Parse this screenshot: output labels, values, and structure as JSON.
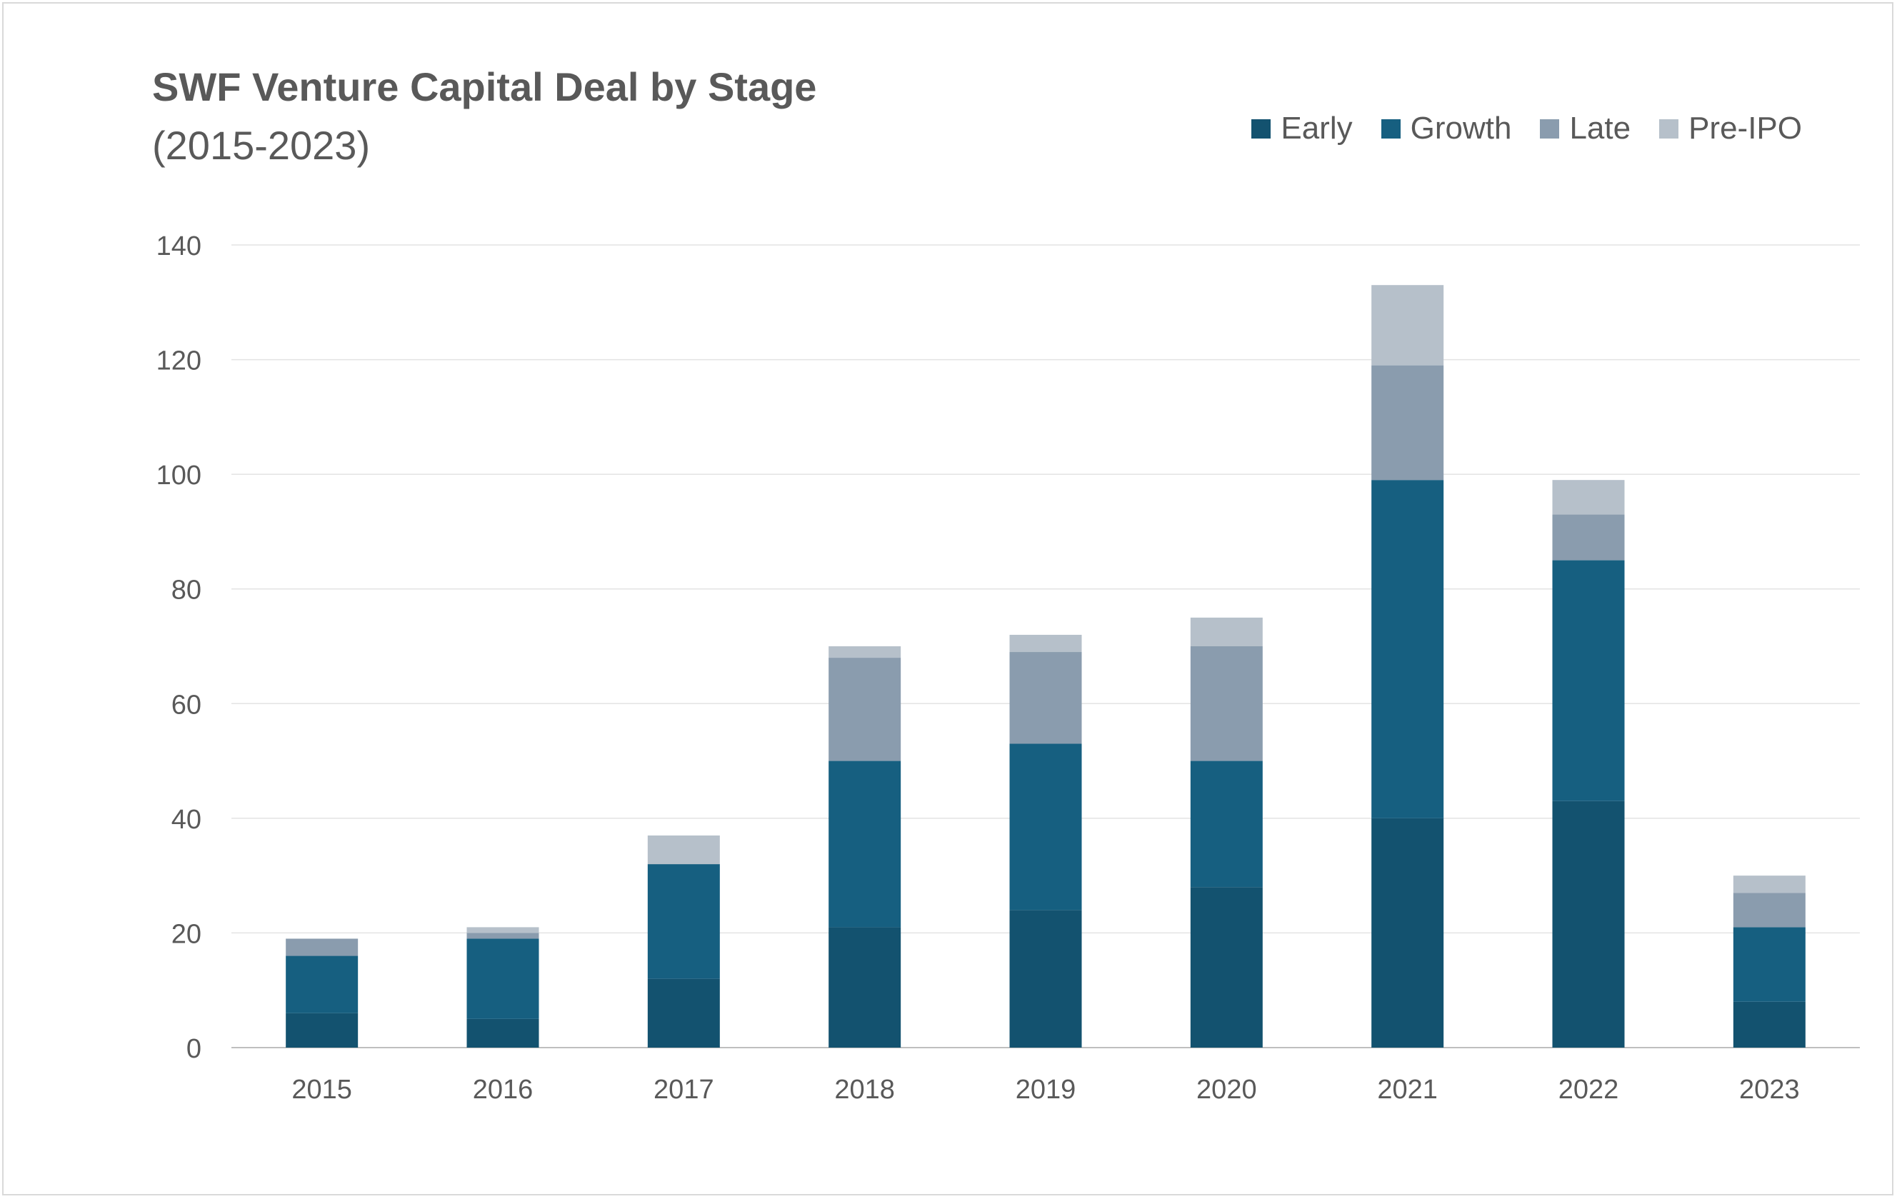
{
  "chart_data": {
    "type": "bar",
    "stacked": true,
    "title": "SWF Venture Capital Deal by Stage",
    "subtitle": "(2015-2023)",
    "categories": [
      "2015",
      "2016",
      "2017",
      "2018",
      "2019",
      "2020",
      "2021",
      "2022",
      "2023"
    ],
    "series": [
      {
        "name": "Early",
        "color": "#13526f",
        "values": [
          6,
          5,
          12,
          21,
          24,
          28,
          40,
          43,
          8
        ]
      },
      {
        "name": "Growth",
        "color": "#165f80",
        "values": [
          10,
          14,
          20,
          29,
          29,
          22,
          59,
          42,
          13
        ]
      },
      {
        "name": "Late",
        "color": "#8a9cae",
        "values": [
          3,
          1,
          0,
          18,
          16,
          20,
          20,
          8,
          6
        ]
      },
      {
        "name": "Pre-IPO",
        "color": "#b6c0ca",
        "values": [
          0,
          1,
          5,
          2,
          3,
          5,
          14,
          6,
          3
        ]
      }
    ],
    "yticks": [
      "0",
      "20",
      "40",
      "60",
      "80",
      "100",
      "120",
      "140"
    ],
    "ylim": [
      0,
      140
    ],
    "grid": true,
    "legend_position": "top-right"
  }
}
